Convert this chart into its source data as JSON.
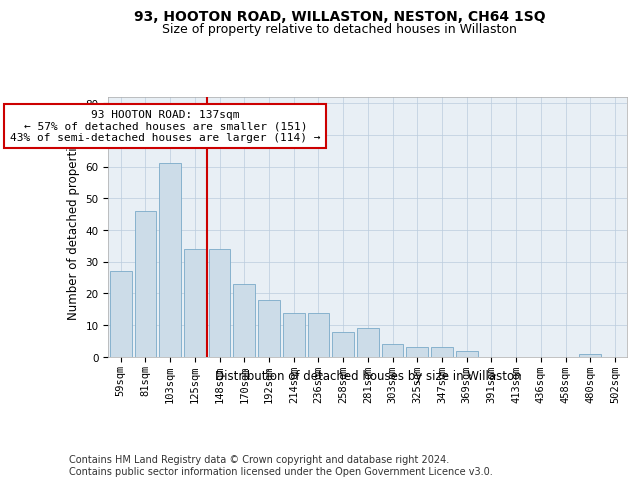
{
  "title": "93, HOOTON ROAD, WILLASTON, NESTON, CH64 1SQ",
  "subtitle": "Size of property relative to detached houses in Willaston",
  "xlabel": "Distribution of detached houses by size in Willaston",
  "ylabel": "Number of detached properties",
  "categories": [
    "59sqm",
    "81sqm",
    "103sqm",
    "125sqm",
    "148sqm",
    "170sqm",
    "192sqm",
    "214sqm",
    "236sqm",
    "258sqm",
    "281sqm",
    "303sqm",
    "325sqm",
    "347sqm",
    "369sqm",
    "391sqm",
    "413sqm",
    "436sqm",
    "458sqm",
    "480sqm",
    "502sqm"
  ],
  "values": [
    27,
    46,
    61,
    34,
    34,
    23,
    18,
    14,
    14,
    8,
    9,
    4,
    3,
    3,
    2,
    0,
    0,
    0,
    0,
    1,
    0
  ],
  "bar_color": "#ccdce8",
  "bar_edge_color": "#7aaac8",
  "red_line_x": 3.5,
  "annotation_text": "93 HOOTON ROAD: 137sqm\n← 57% of detached houses are smaller (151)\n43% of semi-detached houses are larger (114) →",
  "annotation_box_color": "#ffffff",
  "annotation_box_edge_color": "#cc0000",
  "ylim": [
    0,
    82
  ],
  "yticks": [
    0,
    10,
    20,
    30,
    40,
    50,
    60,
    70,
    80
  ],
  "grid_color": "#bbccdd",
  "background_color": "#e8eff5",
  "footer_text": "Contains HM Land Registry data © Crown copyright and database right 2024.\nContains public sector information licensed under the Open Government Licence v3.0.",
  "title_fontsize": 10,
  "subtitle_fontsize": 9,
  "axis_label_fontsize": 8.5,
  "tick_fontsize": 7.5,
  "annotation_fontsize": 8,
  "footer_fontsize": 7
}
